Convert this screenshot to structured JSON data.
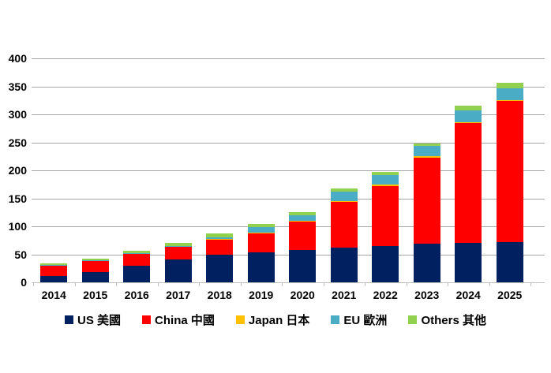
{
  "chart_data": {
    "type": "bar",
    "stacked": true,
    "title": "",
    "xlabel": "",
    "ylabel": "",
    "categories": [
      "2014",
      "2015",
      "2016",
      "2017",
      "2018",
      "2019",
      "2020",
      "2021",
      "2022",
      "2023",
      "2024",
      "2025"
    ],
    "series": [
      {
        "name": "US 美國",
        "color": "#002060",
        "values": [
          11,
          18,
          30,
          41,
          50,
          53,
          58,
          62,
          65,
          69,
          70,
          72
        ]
      },
      {
        "name": "China 中國",
        "color": "#FF0000",
        "values": [
          20,
          20.5,
          22,
          23.5,
          26,
          35,
          50,
          81,
          107,
          154,
          214,
          252
        ]
      },
      {
        "name": "Japan 日本",
        "color": "#FFC000",
        "values": [
          0.2,
          0.3,
          0.3,
          0.3,
          1,
          1,
          1.5,
          2,
          2,
          2,
          2,
          2
        ]
      },
      {
        "name": "EU 歐洲",
        "color": "#4BACC6",
        "values": [
          0.3,
          0.5,
          0.5,
          0.7,
          4,
          10,
          10,
          17,
          18,
          18,
          21,
          21
        ]
      },
      {
        "name": "Others 其他",
        "color": "#92D050",
        "values": [
          2,
          3.5,
          4,
          5,
          6,
          5,
          5.5,
          6,
          5,
          5,
          9,
          9
        ]
      }
    ],
    "ylim": [
      0,
      400
    ],
    "yticks": [
      0,
      50,
      100,
      150,
      200,
      250,
      300,
      350,
      400
    ],
    "grid": true,
    "legend_position": "bottom"
  },
  "colors": {
    "background": "#FFFFFF",
    "gridline": "#A6A6A6",
    "axis_line": "#BFBFBF",
    "tick": "#BFBFBF",
    "text": "#000000"
  }
}
